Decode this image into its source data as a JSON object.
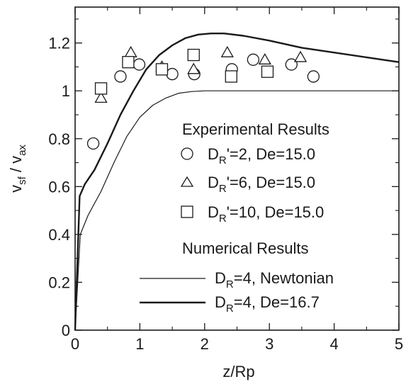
{
  "chart_data": {
    "type": "scatter",
    "title": "",
    "xlabel": {
      "main": "z/Rp"
    },
    "ylabel": {
      "v1": "v",
      "s1": "sf",
      "sep": " / ",
      "v2": "v",
      "s2": "ax"
    },
    "xlim": [
      0,
      5
    ],
    "ylim": [
      0,
      1.35
    ],
    "xticks": [
      "0",
      "1",
      "2",
      "3",
      "4",
      "5"
    ],
    "yticks": [
      "0",
      "0.2",
      "0.4",
      "0.6",
      "0.8",
      "1",
      "1.2"
    ],
    "grid": false,
    "legend_position": "right",
    "legend": {
      "experimental_heading": "Experimental Results",
      "numerical_heading": "Numerical Results",
      "entries": [
        {
          "d": "D",
          "sub": "R",
          "tail": "'=2, De=15.0"
        },
        {
          "d": "D",
          "sub": "R",
          "tail": "'=6, De=15.0"
        },
        {
          "d": "D",
          "sub": "R",
          "tail": "'=10, De=15.0"
        },
        {
          "d": "D",
          "sub": "R",
          "tail": "=4, Newtonian"
        },
        {
          "d": "D",
          "sub": "R",
          "tail": "=4, De=16.7"
        }
      ]
    },
    "scatter_series": [
      {
        "marker": "circle",
        "points": [
          [
            0.28,
            0.78
          ],
          [
            0.7,
            1.06
          ],
          [
            0.99,
            1.11
          ],
          [
            1.5,
            1.07
          ],
          [
            1.84,
            1.07
          ],
          [
            2.42,
            1.09
          ],
          [
            2.75,
            1.13
          ],
          [
            3.34,
            1.11
          ],
          [
            3.68,
            1.06
          ]
        ]
      },
      {
        "marker": "triangle",
        "points": [
          [
            0.4,
            0.97
          ],
          [
            0.86,
            1.16
          ],
          [
            1.34,
            1.1
          ],
          [
            1.83,
            1.09
          ],
          [
            2.35,
            1.16
          ],
          [
            2.93,
            1.13
          ],
          [
            3.48,
            1.14
          ]
        ]
      },
      {
        "marker": "square",
        "points": [
          [
            0.4,
            1.01
          ],
          [
            0.82,
            1.12
          ],
          [
            1.34,
            1.09
          ],
          [
            1.83,
            1.15
          ],
          [
            2.41,
            1.06
          ],
          [
            2.97,
            1.08
          ]
        ]
      }
    ],
    "line_series": [
      {
        "style": "thin",
        "points": [
          [
            0,
            0
          ],
          [
            0.08,
            0.4
          ],
          [
            0.2,
            0.48
          ],
          [
            0.4,
            0.58
          ],
          [
            0.6,
            0.7
          ],
          [
            0.8,
            0.81
          ],
          [
            1.0,
            0.89
          ],
          [
            1.2,
            0.94
          ],
          [
            1.4,
            0.97
          ],
          [
            1.6,
            0.99
          ],
          [
            1.8,
            0.997
          ],
          [
            2.0,
            1.0
          ],
          [
            3.0,
            1.0
          ],
          [
            4.0,
            1.0
          ],
          [
            5.0,
            1.0
          ]
        ]
      },
      {
        "style": "thick",
        "points": [
          [
            0,
            0
          ],
          [
            0.07,
            0.56
          ],
          [
            0.15,
            0.61
          ],
          [
            0.3,
            0.67
          ],
          [
            0.5,
            0.78
          ],
          [
            0.7,
            0.9
          ],
          [
            0.9,
            1.0
          ],
          [
            1.1,
            1.09
          ],
          [
            1.3,
            1.15
          ],
          [
            1.5,
            1.19
          ],
          [
            1.7,
            1.22
          ],
          [
            1.9,
            1.235
          ],
          [
            2.1,
            1.24
          ],
          [
            2.3,
            1.24
          ],
          [
            2.6,
            1.23
          ],
          [
            3.0,
            1.21
          ],
          [
            3.5,
            1.18
          ],
          [
            4.0,
            1.16
          ],
          [
            4.5,
            1.14
          ],
          [
            5.0,
            1.12
          ]
        ]
      }
    ]
  }
}
